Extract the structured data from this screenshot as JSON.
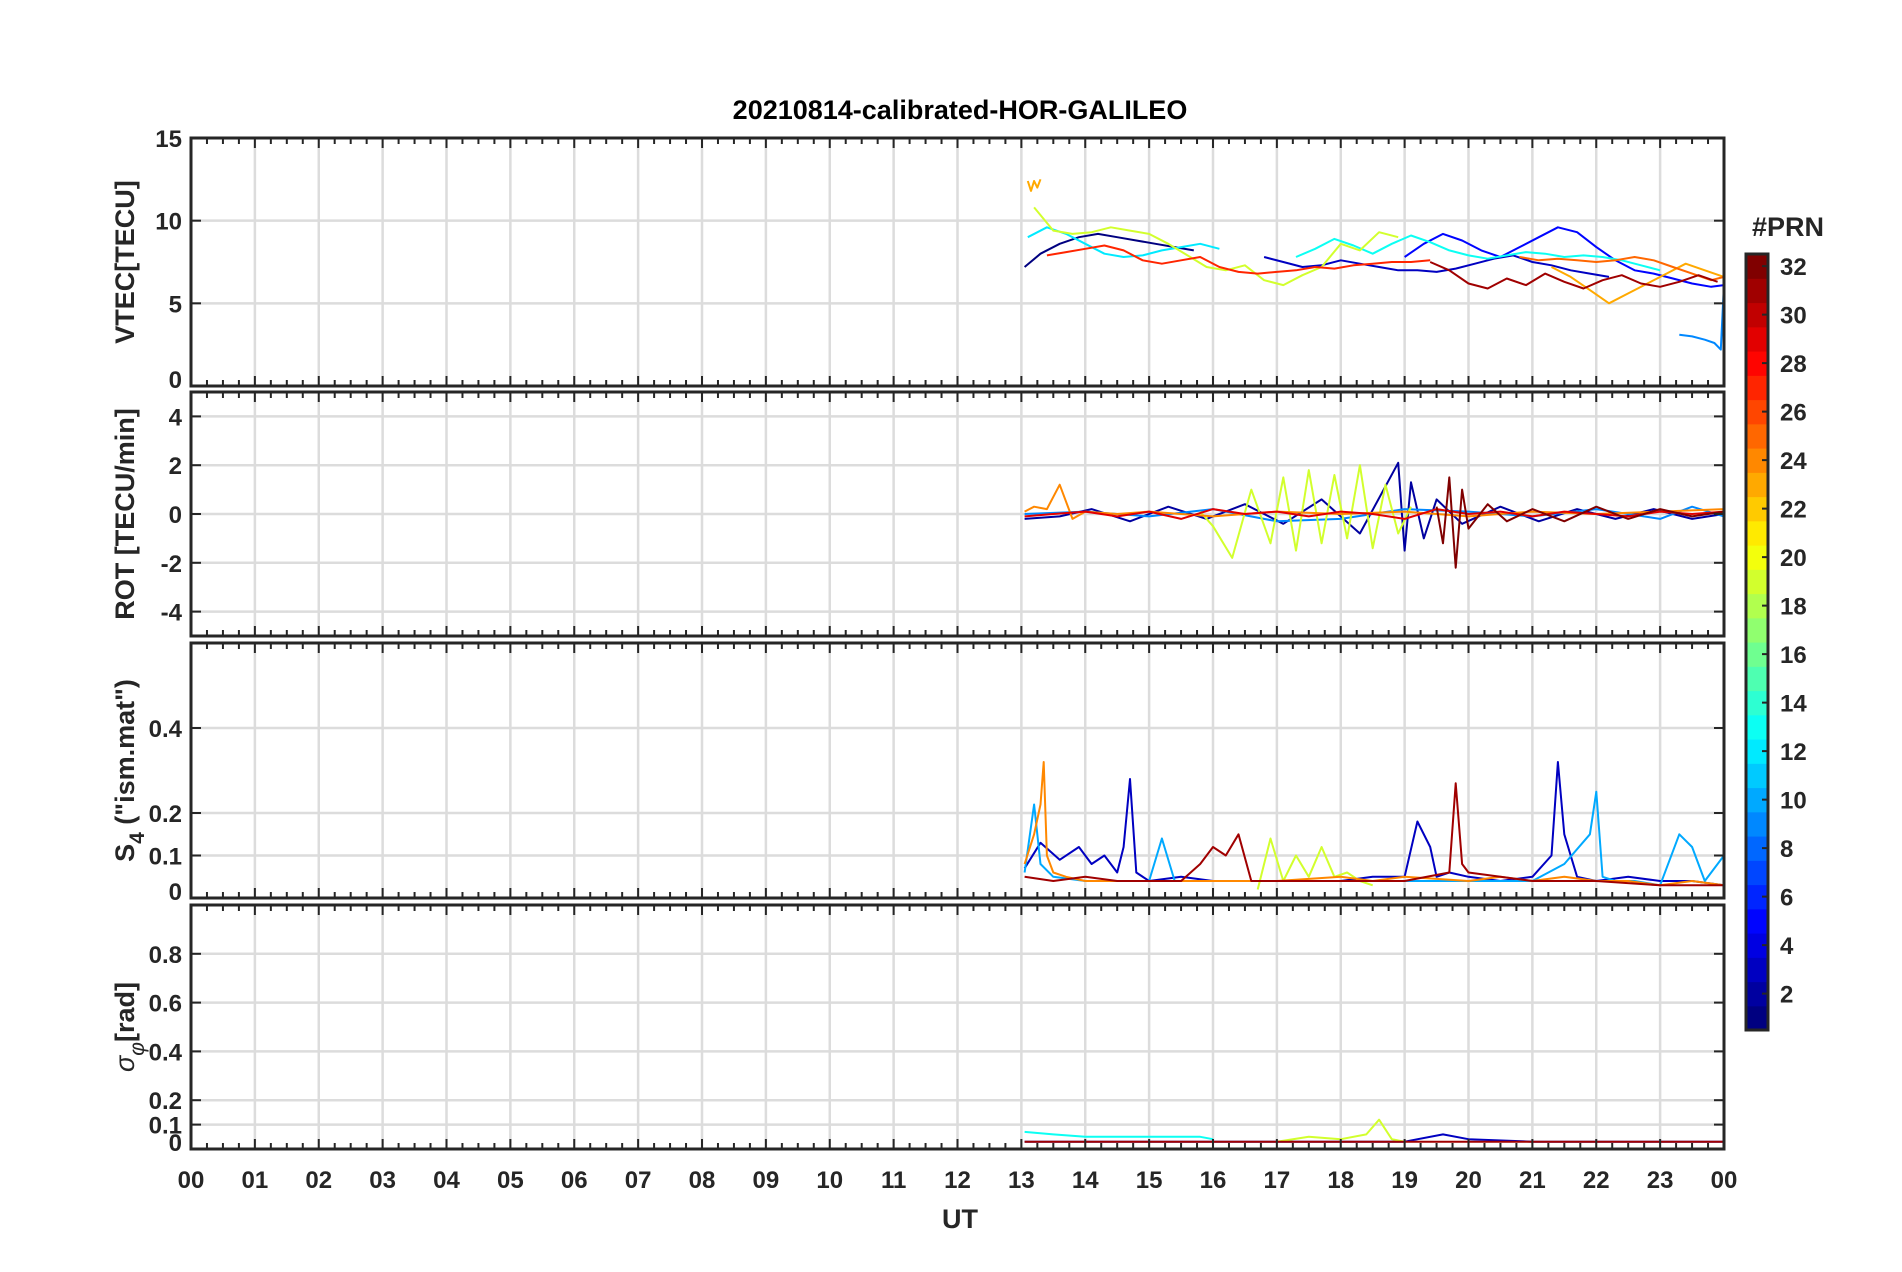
{
  "title": "20210814-calibrated-HOR-GALILEO",
  "xlabel": "UT",
  "x_ticks": [
    "00",
    "01",
    "02",
    "03",
    "04",
    "05",
    "06",
    "07",
    "08",
    "09",
    "10",
    "11",
    "12",
    "13",
    "14",
    "15",
    "16",
    "17",
    "18",
    "19",
    "20",
    "21",
    "22",
    "23",
    "00"
  ],
  "colorbar": {
    "label": "#PRN",
    "range": [
      1,
      32
    ],
    "ticks": [
      "2",
      "4",
      "6",
      "8",
      "10",
      "12",
      "14",
      "16",
      "18",
      "20",
      "22",
      "24",
      "26",
      "28",
      "30",
      "32"
    ],
    "colormap": "jet"
  },
  "chart_data": [
    {
      "type": "line",
      "ylabel": "VTEC[TECU]",
      "ylim": [
        0,
        15
      ],
      "yticks": [
        "0",
        "5",
        "10",
        "15"
      ],
      "xlim_hours": [
        0,
        24
      ],
      "grid": true,
      "series": [
        {
          "prn": 1,
          "x": [
            13.05,
            13.3,
            13.6,
            13.9,
            14.2,
            14.5,
            14.8,
            15.1,
            15.4,
            15.7
          ],
          "y": [
            7.2,
            8.0,
            8.6,
            9.0,
            9.2,
            9.0,
            8.8,
            8.6,
            8.4,
            8.2
          ]
        },
        {
          "prn": 3,
          "x": [
            16.8,
            17.1,
            17.4,
            17.7,
            18.0,
            18.3,
            18.6,
            18.9,
            19.2,
            19.5,
            19.8,
            20.1,
            20.4,
            20.7,
            21.0,
            21.3,
            21.6,
            21.9,
            22.2
          ],
          "y": [
            7.8,
            7.5,
            7.2,
            7.3,
            7.6,
            7.4,
            7.2,
            7.0,
            7.0,
            6.9,
            7.1,
            7.4,
            7.7,
            7.9,
            7.5,
            7.3,
            7.0,
            6.8,
            6.6
          ]
        },
        {
          "prn": 5,
          "x": [
            19.0,
            19.3,
            19.6,
            19.9,
            20.2,
            20.5,
            20.8,
            21.1,
            21.4,
            21.7,
            22.0,
            22.3,
            22.6,
            22.9,
            23.2,
            23.5,
            23.8,
            24.0
          ],
          "y": [
            7.8,
            8.6,
            9.2,
            8.8,
            8.2,
            7.8,
            8.4,
            9.0,
            9.6,
            9.3,
            8.4,
            7.6,
            7.0,
            6.8,
            6.5,
            6.2,
            6.0,
            6.1
          ]
        },
        {
          "prn": 9,
          "x": [
            23.3,
            23.5,
            23.7,
            23.85,
            23.95,
            24.0
          ],
          "y": [
            3.1,
            3.0,
            2.8,
            2.6,
            2.2,
            6.2
          ]
        },
        {
          "prn": 12,
          "x": [
            13.1,
            13.4,
            13.7,
            14.0,
            14.3,
            14.6,
            14.9,
            15.2,
            15.5,
            15.8,
            16.1
          ],
          "y": [
            9.0,
            9.6,
            9.2,
            8.6,
            8.0,
            7.8,
            7.9,
            8.2,
            8.4,
            8.6,
            8.3
          ]
        },
        {
          "prn": 13,
          "x": [
            17.3,
            17.6,
            17.9,
            18.2,
            18.5,
            18.8,
            19.1,
            19.4,
            19.7,
            20.0,
            20.3,
            20.6,
            20.9,
            21.2,
            21.5,
            21.8,
            22.1,
            22.4,
            22.7,
            23.0
          ],
          "y": [
            7.8,
            8.3,
            8.9,
            8.5,
            8.0,
            8.6,
            9.1,
            8.7,
            8.2,
            7.9,
            7.7,
            7.9,
            8.1,
            8.0,
            7.8,
            7.9,
            7.8,
            7.6,
            7.3,
            7.0
          ]
        },
        {
          "prn": 19,
          "x": [
            13.2,
            13.5,
            13.8,
            14.1,
            14.4,
            14.7,
            15.0,
            15.3,
            15.6,
            15.9,
            16.2,
            16.5,
            16.8,
            17.1,
            17.4,
            17.7,
            18.0,
            18.3,
            18.6,
            18.9
          ],
          "y": [
            10.8,
            9.4,
            9.2,
            9.3,
            9.6,
            9.4,
            9.2,
            8.6,
            7.9,
            7.2,
            7.0,
            7.3,
            6.4,
            6.1,
            6.7,
            7.2,
            8.6,
            8.2,
            9.3,
            9.0
          ]
        },
        {
          "prn": 23,
          "x": [
            13.1,
            13.15,
            13.2,
            13.25,
            13.3
          ],
          "y": [
            12.4,
            11.8,
            12.4,
            12.0,
            12.5
          ]
        },
        {
          "prn": 23,
          "x": [
            21.3,
            21.6,
            21.9,
            22.2,
            22.5,
            22.8,
            23.1,
            23.4,
            23.7,
            24.0
          ],
          "y": [
            7.2,
            6.6,
            5.8,
            5.0,
            5.6,
            6.2,
            6.8,
            7.4,
            7.0,
            6.6
          ]
        },
        {
          "prn": 25,
          "x": [
            20.8,
            21.1,
            21.4,
            21.7,
            22.0,
            22.3,
            22.6,
            22.9,
            23.2,
            23.5,
            23.8,
            24.0
          ],
          "y": [
            7.8,
            7.6,
            7.7,
            7.6,
            7.5,
            7.6,
            7.8,
            7.6,
            7.2,
            6.8,
            6.4,
            6.6
          ]
        },
        {
          "prn": 27,
          "x": [
            13.4,
            13.7,
            14.0,
            14.3,
            14.6,
            14.9,
            15.2,
            15.5,
            15.8,
            16.1,
            16.4,
            16.7,
            17.0,
            17.3,
            17.6,
            17.9,
            18.2,
            18.5,
            18.8,
            19.1,
            19.4
          ],
          "y": [
            7.9,
            8.1,
            8.3,
            8.5,
            8.2,
            7.6,
            7.4,
            7.6,
            7.8,
            7.2,
            6.9,
            6.8,
            6.9,
            7.0,
            7.2,
            7.1,
            7.3,
            7.4,
            7.5,
            7.5,
            7.6
          ]
        },
        {
          "prn": 31,
          "x": [
            19.4,
            19.7,
            20.0,
            20.3,
            20.6,
            20.9,
            21.2,
            21.5,
            21.8,
            22.1,
            22.4,
            22.7,
            23.0,
            23.3,
            23.6,
            23.9
          ],
          "y": [
            7.5,
            7.0,
            6.2,
            5.9,
            6.5,
            6.1,
            6.8,
            6.3,
            5.9,
            6.4,
            6.7,
            6.2,
            6.0,
            6.3,
            6.7,
            6.3
          ]
        }
      ]
    },
    {
      "type": "line",
      "ylabel": "ROT [TECU/min]",
      "ylim": [
        -5,
        5
      ],
      "yticks": [
        "-4",
        "-2",
        "0",
        "2",
        "4"
      ],
      "xlim_hours": [
        0,
        24
      ],
      "grid": true,
      "series": [
        {
          "prn": 2,
          "x": [
            13.05,
            13.6,
            14.1,
            14.7,
            15.3,
            15.9,
            16.5,
            17.1,
            17.7,
            18.3,
            18.9,
            19.0,
            19.1,
            19.3,
            19.5,
            19.9,
            20.5,
            21.1,
            21.7,
            22.3,
            22.9,
            23.5,
            24.0
          ],
          "y": [
            -0.2,
            -0.1,
            0.2,
            -0.3,
            0.3,
            -0.2,
            0.4,
            -0.4,
            0.6,
            -0.8,
            2.1,
            -1.5,
            1.3,
            -1.0,
            0.6,
            -0.4,
            0.3,
            -0.3,
            0.2,
            -0.2,
            0.2,
            -0.2,
            0.0
          ]
        },
        {
          "prn": 9,
          "x": [
            13.05,
            14.0,
            15.0,
            16.0,
            17.0,
            18.0,
            19.0,
            20.0,
            21.0,
            22.0,
            23.0,
            23.5,
            24.0
          ],
          "y": [
            0.0,
            0.1,
            -0.1,
            0.2,
            -0.3,
            -0.2,
            0.2,
            0.1,
            -0.1,
            0.2,
            -0.2,
            0.3,
            -0.1
          ]
        },
        {
          "prn": 19,
          "x": [
            15.8,
            16.0,
            16.3,
            16.6,
            16.9,
            17.1,
            17.3,
            17.5,
            17.7,
            17.9,
            18.1,
            18.3,
            18.5,
            18.7,
            18.9,
            19.1
          ],
          "y": [
            0.1,
            -0.5,
            -1.8,
            1.0,
            -1.2,
            1.5,
            -1.5,
            1.8,
            -1.2,
            1.6,
            -1.0,
            2.0,
            -1.4,
            1.2,
            -0.8,
            0.3
          ]
        },
        {
          "prn": 24,
          "x": [
            13.05,
            13.2,
            13.4,
            13.6,
            13.8,
            14.0,
            14.5,
            15.0,
            16.0,
            17.0,
            18.0,
            19.0,
            20.0,
            21.0,
            22.0,
            23.0,
            24.0
          ],
          "y": [
            0.1,
            0.3,
            0.2,
            1.2,
            -0.2,
            0.1,
            0.0,
            0.1,
            -0.1,
            0.1,
            0.0,
            0.1,
            -0.1,
            0.1,
            0.0,
            0.1,
            0.2
          ]
        },
        {
          "prn": 29,
          "x": [
            13.05,
            13.5,
            14.0,
            14.5,
            15.0,
            15.5,
            16.0,
            16.5,
            17.0,
            17.5,
            18.0,
            18.5,
            19.0,
            19.5,
            20.0,
            20.5,
            21.0,
            21.5,
            22.0,
            22.5,
            23.0,
            23.5,
            24.0
          ],
          "y": [
            -0.1,
            0.0,
            0.1,
            -0.1,
            0.1,
            -0.2,
            0.2,
            0.0,
            0.1,
            -0.1,
            0.1,
            0.0,
            -0.2,
            0.2,
            0.0,
            0.1,
            -0.1,
            0.1,
            0.0,
            -0.1,
            0.1,
            0.0,
            0.1
          ]
        },
        {
          "prn": 32,
          "x": [
            19.5,
            19.6,
            19.7,
            19.8,
            19.9,
            20.0,
            20.3,
            20.6,
            21.0,
            21.5,
            22.0,
            22.5,
            23.0,
            23.5,
            24.0
          ],
          "y": [
            0.3,
            -1.2,
            1.5,
            -2.2,
            1.0,
            -0.6,
            0.4,
            -0.3,
            0.2,
            -0.3,
            0.3,
            -0.2,
            0.2,
            -0.1,
            0.1
          ]
        }
      ]
    },
    {
      "type": "line",
      "ylabel": "S4 (\"ism.mat\")",
      "ylabel_main": "S",
      "ylabel_sub": "4",
      "ylabel_rest": " (\"ism.mat\")",
      "ylim": [
        0,
        0.6
      ],
      "yticks": [
        "0",
        "0.1",
        "0.2",
        "0.4"
      ],
      "xlim_hours": [
        0,
        24
      ],
      "grid": true,
      "series": [
        {
          "prn": 3,
          "x": [
            13.05,
            13.3,
            13.6,
            13.9,
            14.1,
            14.3,
            14.5,
            14.6,
            14.7,
            14.8,
            15.0,
            15.5,
            16.0,
            17.0,
            18.0,
            18.5,
            19.0,
            19.2,
            19.4,
            19.5,
            19.7,
            20.0,
            20.5,
            21.0,
            21.3,
            21.4,
            21.5,
            21.7,
            22.0,
            22.5,
            23.0,
            23.5,
            24.0
          ],
          "y": [
            0.07,
            0.13,
            0.09,
            0.12,
            0.08,
            0.1,
            0.06,
            0.12,
            0.28,
            0.06,
            0.04,
            0.05,
            0.04,
            0.04,
            0.04,
            0.05,
            0.05,
            0.18,
            0.12,
            0.05,
            0.06,
            0.05,
            0.04,
            0.05,
            0.1,
            0.32,
            0.15,
            0.05,
            0.04,
            0.05,
            0.04,
            0.04,
            0.03
          ]
        },
        {
          "prn": 10,
          "x": [
            13.05,
            13.2,
            13.3,
            13.5,
            14.0,
            15.0,
            15.2,
            15.4,
            16.0,
            17.0,
            18.0,
            19.0,
            20.0,
            21.0,
            21.5,
            21.9,
            22.0,
            22.1,
            22.3,
            22.6,
            23.0,
            23.3,
            23.5,
            23.7,
            24.0
          ],
          "y": [
            0.06,
            0.22,
            0.08,
            0.05,
            0.04,
            0.04,
            0.14,
            0.04,
            0.04,
            0.04,
            0.04,
            0.04,
            0.04,
            0.04,
            0.08,
            0.15,
            0.25,
            0.05,
            0.04,
            0.04,
            0.03,
            0.15,
            0.12,
            0.04,
            0.1
          ]
        },
        {
          "prn": 19,
          "x": [
            16.7,
            16.9,
            17.1,
            17.3,
            17.5,
            17.7,
            17.9,
            18.1,
            18.3,
            18.5
          ],
          "y": [
            0.02,
            0.14,
            0.04,
            0.1,
            0.05,
            0.12,
            0.05,
            0.06,
            0.04,
            0.03
          ]
        },
        {
          "prn": 24,
          "x": [
            13.05,
            13.2,
            13.3,
            13.35,
            13.4,
            13.5,
            13.7,
            14.0,
            15.0,
            16.0,
            17.0,
            18.0,
            18.5,
            19.0,
            20.0,
            20.5,
            21.0,
            21.5,
            22.0,
            22.5,
            23.0,
            23.5,
            24.0
          ],
          "y": [
            0.08,
            0.15,
            0.22,
            0.32,
            0.1,
            0.06,
            0.05,
            0.04,
            0.04,
            0.04,
            0.04,
            0.05,
            0.04,
            0.05,
            0.04,
            0.05,
            0.04,
            0.05,
            0.04,
            0.04,
            0.03,
            0.04,
            0.03
          ]
        },
        {
          "prn": 31,
          "x": [
            13.05,
            13.5,
            14.0,
            14.5,
            15.0,
            15.5,
            15.8,
            16.0,
            16.2,
            16.4,
            16.6,
            17.0,
            18.0,
            19.0,
            19.7,
            19.8,
            19.9,
            20.0,
            20.5,
            21.0,
            22.0,
            23.0,
            24.0
          ],
          "y": [
            0.05,
            0.04,
            0.05,
            0.04,
            0.04,
            0.04,
            0.08,
            0.12,
            0.1,
            0.15,
            0.04,
            0.04,
            0.04,
            0.04,
            0.06,
            0.27,
            0.08,
            0.06,
            0.05,
            0.04,
            0.04,
            0.03,
            0.03
          ]
        }
      ]
    },
    {
      "type": "line",
      "ylabel": "σφ [rad]",
      "ylabel_main": "σ",
      "ylabel_sub": "φ",
      "ylabel_rest": "[rad]",
      "ylim": [
        0,
        1
      ],
      "yticks": [
        "0",
        "0.1",
        "0.2",
        "0.4",
        "0.6",
        "0.8"
      ],
      "xlim_hours": [
        0,
        24
      ],
      "grid": true,
      "series": [
        {
          "prn": 3,
          "x": [
            13.05,
            14.0,
            15.0,
            16.0,
            17.0,
            18.0,
            19.0,
            19.6,
            20.0,
            21.0,
            22.0,
            23.0,
            24.0
          ],
          "y": [
            0.03,
            0.03,
            0.03,
            0.03,
            0.03,
            0.03,
            0.03,
            0.06,
            0.04,
            0.03,
            0.03,
            0.03,
            0.03
          ]
        },
        {
          "prn": 13,
          "x": [
            13.05,
            13.5,
            14.0,
            15.0,
            15.8,
            16.0
          ],
          "y": [
            0.07,
            0.06,
            0.05,
            0.05,
            0.05,
            0.04
          ]
        },
        {
          "prn": 19,
          "x": [
            17.0,
            17.5,
            18.0,
            18.4,
            18.6,
            18.8,
            19.0
          ],
          "y": [
            0.03,
            0.05,
            0.04,
            0.06,
            0.12,
            0.04,
            0.03
          ]
        },
        {
          "prn": 31,
          "x": [
            13.05,
            14.0,
            15.0,
            16.0,
            17.0,
            18.0,
            19.0,
            20.0,
            21.0,
            22.0,
            23.0,
            24.0
          ],
          "y": [
            0.03,
            0.03,
            0.03,
            0.03,
            0.03,
            0.03,
            0.03,
            0.03,
            0.03,
            0.03,
            0.03,
            0.03
          ]
        }
      ]
    }
  ]
}
